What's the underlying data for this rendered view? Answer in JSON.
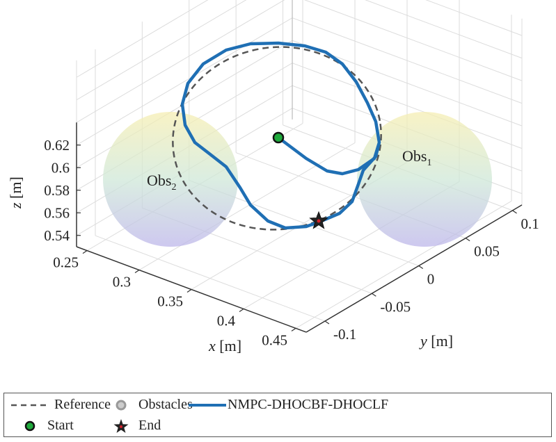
{
  "chart_data": {
    "type": "line3d",
    "xlabel": "x [m]",
    "ylabel": "y [m]",
    "zlabel": "z [m]",
    "xlim": [
      0.24,
      0.46
    ],
    "ylim": [
      -0.12,
      0.11
    ],
    "zlim": [
      0.53,
      0.64
    ],
    "x_ticks": [
      "0.25",
      "0.3",
      "0.35",
      "0.4",
      "0.45"
    ],
    "x_tick_values": [
      0.25,
      0.3,
      0.35,
      0.4,
      0.45
    ],
    "y_ticks": [
      "-0.1",
      "-0.05",
      "0",
      "0.05",
      "0.1"
    ],
    "y_tick_values": [
      -0.1,
      -0.05,
      0,
      0.05,
      0.1
    ],
    "z_ticks": [
      "0.54",
      "0.56",
      "0.58",
      "0.6",
      "0.62"
    ],
    "z_tick_values": [
      0.54,
      0.56,
      0.58,
      0.6,
      0.62
    ],
    "grid": true,
    "obstacles": [
      {
        "label": "Obs",
        "sub": "1"
      },
      {
        "label": "Obs",
        "sub": "2"
      }
    ],
    "legend": {
      "placement": "bottom",
      "entries": [
        "Reference",
        "Obstacles",
        "NMPC-DHOCBF-DHOCLF",
        "Start",
        "End"
      ]
    },
    "colors": {
      "trajectory": "#1f6fb4",
      "reference": "#555555",
      "start": "#1faa3c",
      "end_star": "#222222",
      "end_center": "#d0202a",
      "obstacle_top": "#f4ecb0",
      "obstacle_bottom": "#b9b6e6"
    }
  }
}
